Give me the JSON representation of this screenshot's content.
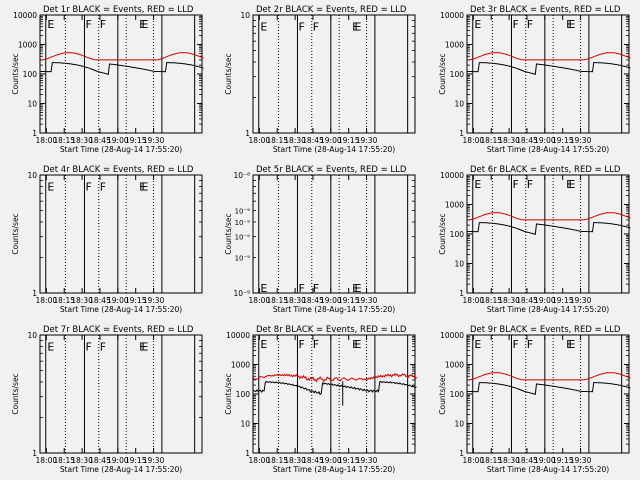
{
  "figure": {
    "background": "#f1f1f1",
    "event_color": "#000000",
    "lld_color": "#d40000",
    "xlabel": "Start Time (28-Aug-14 17:55:20)",
    "ylabel": "Counts/sec",
    "xticks": [
      "18:00",
      "18:15",
      "18:30",
      "18:45",
      "19:00",
      "19:15",
      "19:30"
    ]
  },
  "chart_data": [
    {
      "type": "line",
      "title": "Det 1r BLACK = Events, RED = LLD",
      "scale": "log",
      "ylim": [
        1,
        10000
      ],
      "yticks": [
        "1",
        "10",
        "100",
        "1000",
        "10000"
      ],
      "has_data": true,
      "noisy": false,
      "ld_minutes": [
        -0.5,
        32,
        60,
        97,
        124.5
      ],
      "dot_minutes": [
        16,
        44,
        67,
        90
      ],
      "letters": [
        {
          "text": "E",
          "min": 0
        },
        {
          "text": "F",
          "min": 32
        },
        {
          "text": "F",
          "min": 44
        },
        {
          "text": "E",
          "min": 77
        },
        {
          "text": "E",
          "min": 79
        }
      ],
      "letters_y": 8000
    },
    {
      "type": "line",
      "title": "Det 2r BLACK = Events, RED = LLD",
      "scale": "log",
      "ylim": [
        1,
        10
      ],
      "yticks": [
        "1",
        "10"
      ],
      "has_data": false,
      "noisy": false,
      "ld_minutes": [
        -0.5,
        32,
        60,
        97,
        124.5
      ],
      "dot_minutes": [
        16,
        44,
        67,
        90
      ],
      "letters": [
        {
          "text": "E",
          "min": 0
        },
        {
          "text": "F",
          "min": 32
        },
        {
          "text": "F",
          "min": 44
        },
        {
          "text": "E",
          "min": 77
        },
        {
          "text": "E",
          "min": 79
        }
      ],
      "letters_y": 8
    },
    {
      "type": "line",
      "title": "Det 3r BLACK = Events, RED = LLD",
      "scale": "log",
      "ylim": [
        1,
        10000
      ],
      "yticks": [
        "1",
        "10",
        "100",
        "1000",
        "10000"
      ],
      "has_data": true,
      "noisy": false,
      "ld_minutes": [
        -0.5,
        32,
        60,
        97,
        124.5
      ],
      "dot_minutes": [
        16,
        44,
        67,
        90
      ],
      "letters": [
        {
          "text": "E",
          "min": 0
        },
        {
          "text": "F",
          "min": 32
        },
        {
          "text": "F",
          "min": 44
        },
        {
          "text": "E",
          "min": 77
        },
        {
          "text": "E",
          "min": 79
        }
      ],
      "letters_y": 8000
    },
    {
      "type": "line",
      "title": "Det 4r BLACK = Events, RED = LLD",
      "scale": "log",
      "ylim": [
        1,
        10
      ],
      "yticks": [
        "1",
        "10"
      ],
      "has_data": false,
      "noisy": false,
      "ld_minutes": [
        -0.5,
        32,
        60,
        97,
        124.5
      ],
      "dot_minutes": [
        16,
        44,
        67,
        90
      ],
      "letters": [
        {
          "text": "E",
          "min": 0
        },
        {
          "text": "F",
          "min": 32
        },
        {
          "text": "F",
          "min": 44
        },
        {
          "text": "E",
          "min": 77
        },
        {
          "text": "E",
          "min": 79
        }
      ],
      "letters_y": 8
    },
    {
      "type": "line",
      "title": "Det 5r BLACK = Events, RED = LLD",
      "scale": "log",
      "ylim": [
        1e-09,
        1e-08
      ],
      "yticks": [
        "10⁻⁹",
        "10⁻⁸"
      ],
      "minor_labels": [
        "10⁻⁹",
        "10⁻⁹",
        "10⁻⁹",
        "10⁻⁹"
      ],
      "has_data": false,
      "noisy": false,
      "ld_minutes": [
        -0.5,
        32,
        60,
        97,
        124.5
      ],
      "dot_minutes": [
        16,
        44,
        67,
        90
      ],
      "letters": [
        {
          "text": "E",
          "min": 0
        },
        {
          "text": "F",
          "min": 32
        },
        {
          "text": "F",
          "min": 44
        },
        {
          "text": "E",
          "min": 77
        },
        {
          "text": "E",
          "min": 79
        }
      ],
      "letters_y": 1.1e-09
    },
    {
      "type": "line",
      "title": "Det 6r BLACK = Events, RED = LLD",
      "scale": "log",
      "ylim": [
        1,
        10000
      ],
      "yticks": [
        "1",
        "10",
        "100",
        "1000",
        "10000"
      ],
      "has_data": true,
      "noisy": false,
      "ld_minutes": [
        -0.5,
        32,
        60,
        97,
        124.5
      ],
      "dot_minutes": [
        16,
        44,
        67,
        90
      ],
      "letters": [
        {
          "text": "E",
          "min": 0
        },
        {
          "text": "F",
          "min": 32
        },
        {
          "text": "F",
          "min": 44
        },
        {
          "text": "E",
          "min": 77
        },
        {
          "text": "E",
          "min": 79
        }
      ],
      "letters_y": 8000
    },
    {
      "type": "line",
      "title": "Det 7r BLACK = Events, RED = LLD",
      "scale": "log",
      "ylim": [
        1,
        10
      ],
      "yticks": [
        "1",
        "10"
      ],
      "has_data": false,
      "noisy": false,
      "ld_minutes": [
        -0.5,
        32,
        60,
        97,
        124.5
      ],
      "dot_minutes": [
        16,
        44,
        67,
        90
      ],
      "letters": [
        {
          "text": "E",
          "min": 0
        },
        {
          "text": "F",
          "min": 32
        },
        {
          "text": "F",
          "min": 44
        },
        {
          "text": "E",
          "min": 77
        },
        {
          "text": "E",
          "min": 79
        }
      ],
      "letters_y": 8
    },
    {
      "type": "line",
      "title": "Det 8r BLACK = Events, RED = LLD",
      "scale": "log",
      "ylim": [
        1,
        10000
      ],
      "yticks": [
        "1",
        "10",
        "100",
        "1000",
        "10000"
      ],
      "has_data": true,
      "noisy": true,
      "ld_minutes": [
        -0.5,
        32,
        60,
        97,
        124.5
      ],
      "dot_minutes": [
        16,
        44,
        67,
        90
      ],
      "letters": [
        {
          "text": "E",
          "min": 0
        },
        {
          "text": "F",
          "min": 32
        },
        {
          "text": "F",
          "min": 44
        },
        {
          "text": "E",
          "min": 77
        },
        {
          "text": "E",
          "min": 79
        }
      ],
      "letters_y": 8000
    },
    {
      "type": "line",
      "title": "Det 9r BLACK = Events, RED = LLD",
      "scale": "log",
      "ylim": [
        1,
        10000
      ],
      "yticks": [
        "1",
        "10",
        "100",
        "1000",
        "10000"
      ],
      "has_data": true,
      "noisy": false,
      "ld_minutes": [
        -0.5,
        32,
        60,
        97,
        124.5
      ],
      "dot_minutes": [
        16,
        44,
        67,
        90
      ],
      "letters": [
        {
          "text": "E",
          "min": 0
        },
        {
          "text": "F",
          "min": 32
        },
        {
          "text": "F",
          "min": 44
        },
        {
          "text": "E",
          "min": 77
        },
        {
          "text": "E",
          "min": 79
        }
      ],
      "letters_y": 8000
    }
  ]
}
